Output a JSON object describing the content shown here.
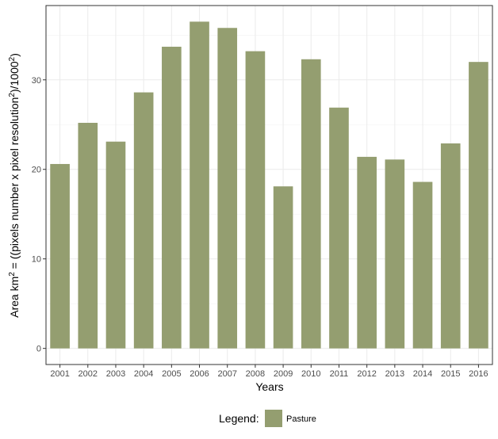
{
  "chart_data": {
    "type": "bar",
    "categories": [
      "2001",
      "2002",
      "2003",
      "2004",
      "2005",
      "2006",
      "2007",
      "2008",
      "2009",
      "2010",
      "2011",
      "2012",
      "2013",
      "2014",
      "2015",
      "2016"
    ],
    "series": [
      {
        "name": "Pasture",
        "color": "#949e70",
        "values": [
          20.6,
          25.2,
          23.1,
          28.6,
          33.7,
          36.5,
          35.8,
          33.2,
          18.1,
          32.3,
          26.9,
          21.4,
          21.1,
          18.6,
          22.9,
          32.0
        ]
      }
    ],
    "xlabel": "Years",
    "ylabel_parts": [
      "Area km",
      "2",
      " = ((pixels number x pixel resolution",
      "2",
      ")/1000",
      "2",
      ")"
    ],
    "yticks": [
      0,
      10,
      20,
      30
    ],
    "ylim": [
      -1.8,
      38.3
    ],
    "grid": true,
    "legend": {
      "title": "Legend:",
      "placement": "bottom"
    }
  }
}
